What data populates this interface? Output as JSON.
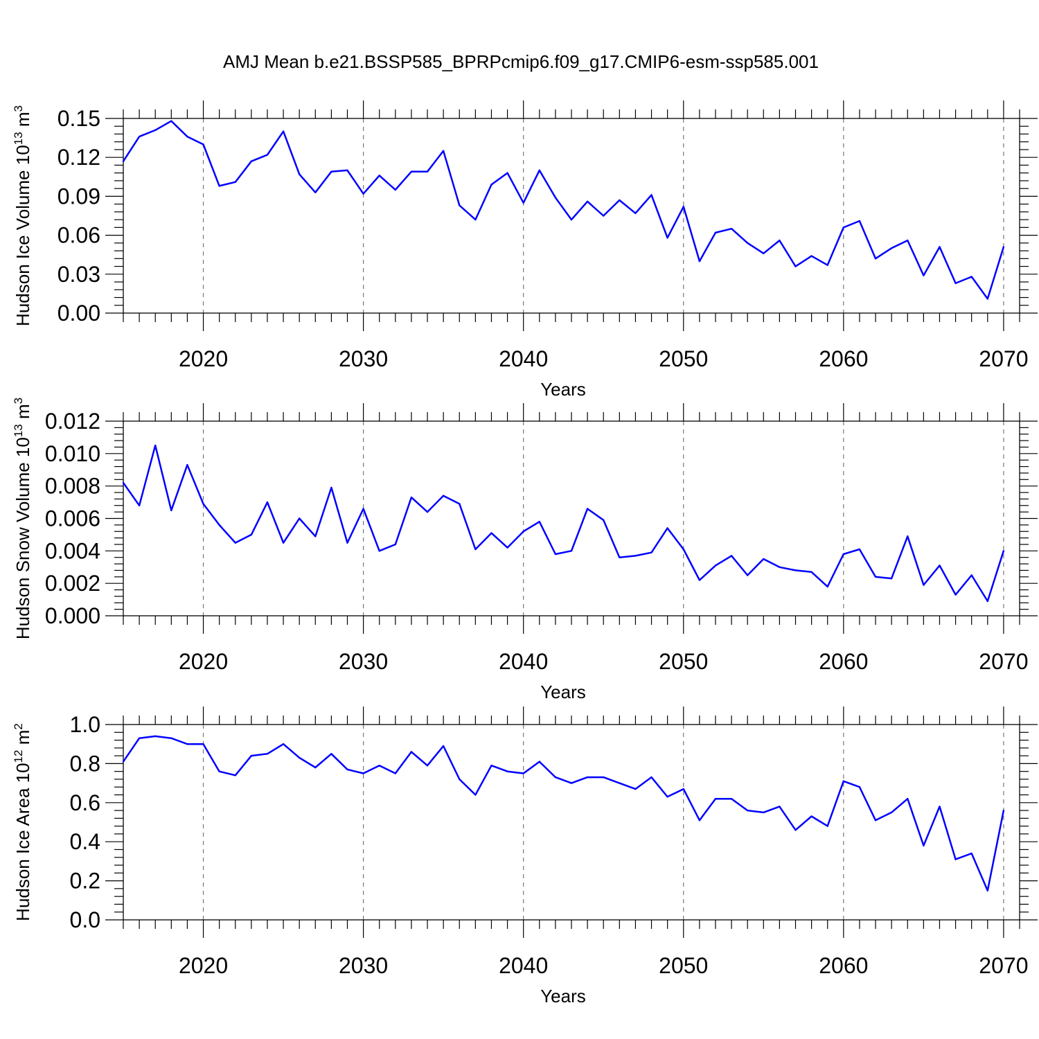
{
  "title": "AMJ Mean b.e21.BSSP585_BPRPcmip6.f09_g17.CMIP6-esm-ssp585.001",
  "chart_data": [
    {
      "type": "line",
      "xlabel": "Years",
      "ylabel": "Hudson Ice Volume 10",
      "ylabel_sup": "13",
      "ylabel_unit": " m",
      "ylabel_unit_sup": "3",
      "xlim": [
        2015,
        2071
      ],
      "ylim": [
        0,
        0.15
      ],
      "x_ticks": [
        2020,
        2030,
        2040,
        2050,
        2060,
        2070
      ],
      "x_tick_labels": [
        "2020",
        "2030",
        "2040",
        "2050",
        "2060",
        "2070"
      ],
      "y_ticks": [
        0,
        0.03,
        0.06,
        0.09,
        0.12,
        0.15
      ],
      "y_tick_labels": [
        "0.00",
        "0.03",
        "0.06",
        "0.09",
        "0.12",
        "0.15"
      ],
      "grid": "vertical dashed at major x ticks",
      "color": "#0000ff",
      "x": [
        2015,
        2016,
        2017,
        2018,
        2019,
        2020,
        2021,
        2022,
        2023,
        2024,
        2025,
        2026,
        2027,
        2028,
        2029,
        2030,
        2031,
        2032,
        2033,
        2034,
        2035,
        2036,
        2037,
        2038,
        2039,
        2040,
        2041,
        2042,
        2043,
        2044,
        2045,
        2046,
        2047,
        2048,
        2049,
        2050,
        2051,
        2052,
        2053,
        2054,
        2055,
        2056,
        2057,
        2058,
        2059,
        2060,
        2061,
        2062,
        2063,
        2064,
        2065,
        2066,
        2067,
        2068,
        2069,
        2070
      ],
      "values": [
        0.117,
        0.136,
        0.141,
        0.148,
        0.136,
        0.13,
        0.098,
        0.101,
        0.117,
        0.122,
        0.14,
        0.107,
        0.093,
        0.109,
        0.11,
        0.092,
        0.106,
        0.095,
        0.109,
        0.109,
        0.125,
        0.083,
        0.072,
        0.099,
        0.108,
        0.085,
        0.11,
        0.089,
        0.072,
        0.086,
        0.075,
        0.087,
        0.077,
        0.091,
        0.058,
        0.082,
        0.04,
        0.062,
        0.065,
        0.054,
        0.046,
        0.056,
        0.036,
        0.044,
        0.037,
        0.066,
        0.071,
        0.042,
        0.05,
        0.056,
        0.029,
        0.051,
        0.023,
        0.028,
        0.011,
        0.051
      ]
    },
    {
      "type": "line",
      "xlabel": "Years",
      "ylabel": "Hudson Snow Volume 10",
      "ylabel_sup": "13",
      "ylabel_unit": " m",
      "ylabel_unit_sup": "3",
      "xlim": [
        2015,
        2071
      ],
      "ylim": [
        0,
        0.012
      ],
      "x_ticks": [
        2020,
        2030,
        2040,
        2050,
        2060,
        2070
      ],
      "x_tick_labels": [
        "2020",
        "2030",
        "2040",
        "2050",
        "2060",
        "2070"
      ],
      "y_ticks": [
        0,
        0.002,
        0.004,
        0.006,
        0.008,
        0.01,
        0.012
      ],
      "y_tick_labels": [
        "0.000",
        "0.002",
        "0.004",
        "0.006",
        "0.008",
        "0.010",
        "0.012"
      ],
      "grid": "vertical dashed at major x ticks",
      "color": "#0000ff",
      "x": [
        2015,
        2016,
        2017,
        2018,
        2019,
        2020,
        2021,
        2022,
        2023,
        2024,
        2025,
        2026,
        2027,
        2028,
        2029,
        2030,
        2031,
        2032,
        2033,
        2034,
        2035,
        2036,
        2037,
        2038,
        2039,
        2040,
        2041,
        2042,
        2043,
        2044,
        2045,
        2046,
        2047,
        2048,
        2049,
        2050,
        2051,
        2052,
        2053,
        2054,
        2055,
        2056,
        2057,
        2058,
        2059,
        2060,
        2061,
        2062,
        2063,
        2064,
        2065,
        2066,
        2067,
        2068,
        2069,
        2070
      ],
      "values": [
        0.0082,
        0.0068,
        0.0105,
        0.0065,
        0.0093,
        0.0069,
        0.0056,
        0.0045,
        0.005,
        0.007,
        0.0045,
        0.006,
        0.0049,
        0.0079,
        0.0045,
        0.0066,
        0.004,
        0.0044,
        0.0073,
        0.0064,
        0.0074,
        0.0069,
        0.0041,
        0.0051,
        0.0042,
        0.0052,
        0.0058,
        0.0038,
        0.004,
        0.0066,
        0.0059,
        0.0036,
        0.0037,
        0.0039,
        0.0054,
        0.0041,
        0.0022,
        0.0031,
        0.0037,
        0.0025,
        0.0035,
        0.003,
        0.0028,
        0.0027,
        0.0018,
        0.0038,
        0.0041,
        0.0024,
        0.0023,
        0.0049,
        0.0019,
        0.0031,
        0.0013,
        0.0025,
        0.0009,
        0.004
      ]
    },
    {
      "type": "line",
      "xlabel": "Years",
      "ylabel": "Hudson Ice Area 10",
      "ylabel_sup": "12",
      "ylabel_unit": " m",
      "ylabel_unit_sup": "2",
      "xlim": [
        2015,
        2071
      ],
      "ylim": [
        0,
        1.0
      ],
      "x_ticks": [
        2020,
        2030,
        2040,
        2050,
        2060,
        2070
      ],
      "x_tick_labels": [
        "2020",
        "2030",
        "2040",
        "2050",
        "2060",
        "2070"
      ],
      "y_ticks": [
        0,
        0.2,
        0.4,
        0.6,
        0.8,
        1.0
      ],
      "y_tick_labels": [
        "0.0",
        "0.2",
        "0.4",
        "0.6",
        "0.8",
        "1.0"
      ],
      "grid": "vertical dashed at major x ticks",
      "color": "#0000ff",
      "x": [
        2015,
        2016,
        2017,
        2018,
        2019,
        2020,
        2021,
        2022,
        2023,
        2024,
        2025,
        2026,
        2027,
        2028,
        2029,
        2030,
        2031,
        2032,
        2033,
        2034,
        2035,
        2036,
        2037,
        2038,
        2039,
        2040,
        2041,
        2042,
        2043,
        2044,
        2045,
        2046,
        2047,
        2048,
        2049,
        2050,
        2051,
        2052,
        2053,
        2054,
        2055,
        2056,
        2057,
        2058,
        2059,
        2060,
        2061,
        2062,
        2063,
        2064,
        2065,
        2066,
        2067,
        2068,
        2069,
        2070
      ],
      "values": [
        0.81,
        0.93,
        0.94,
        0.93,
        0.9,
        0.9,
        0.76,
        0.74,
        0.84,
        0.85,
        0.9,
        0.83,
        0.78,
        0.85,
        0.77,
        0.75,
        0.79,
        0.75,
        0.86,
        0.79,
        0.89,
        0.72,
        0.64,
        0.79,
        0.76,
        0.75,
        0.81,
        0.73,
        0.7,
        0.73,
        0.73,
        0.7,
        0.67,
        0.73,
        0.63,
        0.67,
        0.51,
        0.62,
        0.62,
        0.56,
        0.55,
        0.58,
        0.46,
        0.53,
        0.48,
        0.71,
        0.68,
        0.51,
        0.55,
        0.62,
        0.38,
        0.58,
        0.31,
        0.34,
        0.15,
        0.56
      ]
    }
  ]
}
